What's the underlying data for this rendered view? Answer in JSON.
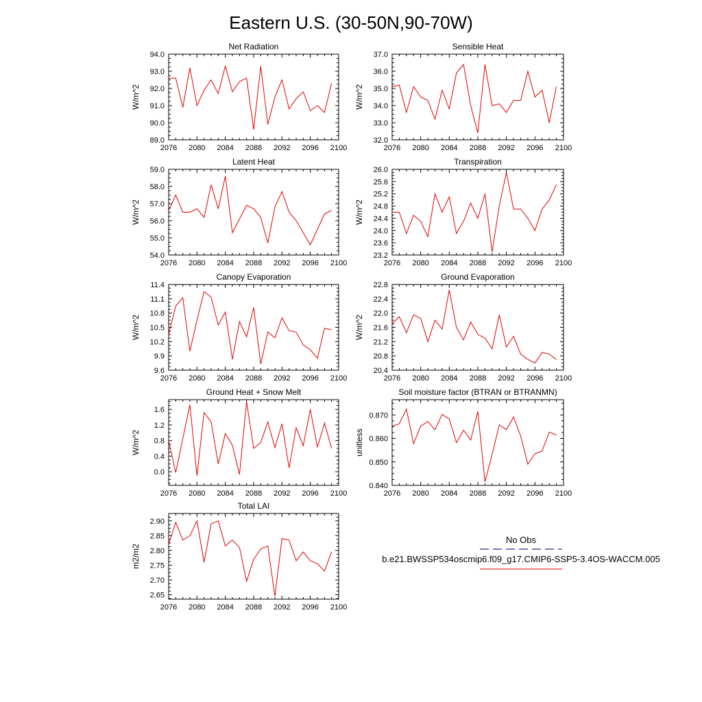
{
  "title": "Eastern U.S. (30-50N,90-70W)",
  "legend": {
    "obs_label": "No Obs",
    "obs_color": "#2a2a8a",
    "model_label": "b.e21.BWSSP534oscmip6.f09_g17.CMIP6-SSP5-3.4OS-WACCM.005",
    "model_color": "#e00000"
  },
  "chart_data": [
    {
      "type": "line",
      "title": "Net Radiation",
      "ylabel": "W/m^2",
      "xlim": [
        2076,
        2100
      ],
      "ylim": [
        89.0,
        94.0
      ],
      "xticks": [
        "2076",
        "2080",
        "2084",
        "2088",
        "2092",
        "2096",
        "2100"
      ],
      "yticks": [
        "89.0",
        "90.0",
        "91.0",
        "92.0",
        "93.0",
        "94.0"
      ],
      "series": [
        {
          "x_start": 2076,
          "values": [
            92.6,
            92.6,
            90.9,
            93.2,
            91.0,
            91.9,
            92.5,
            91.7,
            93.3,
            91.8,
            92.4,
            92.6,
            89.6,
            93.3,
            89.9,
            91.5,
            92.5,
            90.8,
            91.4,
            91.8,
            90.7,
            91.0,
            90.6,
            92.3
          ]
        }
      ]
    },
    {
      "type": "line",
      "title": "Sensible Heat",
      "ylabel": "W/m^2",
      "xlim": [
        2076,
        2100
      ],
      "ylim": [
        32.0,
        37.0
      ],
      "xticks": [
        "2076",
        "2080",
        "2084",
        "2088",
        "2092",
        "2096",
        "2100"
      ],
      "yticks": [
        "32.0",
        "33.0",
        "34.0",
        "35.0",
        "36.0",
        "37.0"
      ],
      "series": [
        {
          "x_start": 2076,
          "values": [
            35.1,
            35.2,
            33.6,
            35.1,
            34.5,
            34.3,
            33.2,
            34.9,
            33.8,
            35.9,
            36.4,
            34.0,
            32.4,
            36.4,
            34.0,
            34.1,
            33.6,
            34.3,
            34.3,
            36.0,
            34.5,
            34.9,
            33.0,
            35.1
          ]
        }
      ]
    },
    {
      "type": "line",
      "title": "Latent Heat",
      "ylabel": "W/m^2",
      "xlim": [
        2076,
        2100
      ],
      "ylim": [
        54.0,
        59.0
      ],
      "xticks": [
        "2076",
        "2080",
        "2084",
        "2088",
        "2092",
        "2096",
        "2100"
      ],
      "yticks": [
        "54.0",
        "55.0",
        "56.0",
        "57.0",
        "58.0",
        "59.0"
      ],
      "series": [
        {
          "x_start": 2076,
          "values": [
            56.6,
            57.5,
            56.5,
            56.5,
            56.7,
            56.2,
            58.1,
            56.7,
            58.6,
            55.3,
            56.1,
            56.9,
            56.7,
            56.2,
            54.7,
            56.8,
            57.7,
            56.5,
            56.0,
            55.3,
            54.6,
            55.5,
            56.4,
            56.6
          ]
        }
      ]
    },
    {
      "type": "line",
      "title": "Transpiration",
      "ylabel": "W/m^2",
      "xlim": [
        2076,
        2100
      ],
      "ylim": [
        23.2,
        26.0
      ],
      "xticks": [
        "2076",
        "2080",
        "2084",
        "2088",
        "2092",
        "2096",
        "2100"
      ],
      "yticks": [
        "23.2",
        "23.6",
        "24.0",
        "24.4",
        "24.8",
        "25.2",
        "25.6",
        "26.0"
      ],
      "series": [
        {
          "x_start": 2076,
          "values": [
            24.6,
            24.6,
            23.9,
            24.5,
            24.3,
            23.8,
            25.2,
            24.6,
            25.1,
            23.9,
            24.3,
            24.9,
            24.4,
            25.2,
            23.3,
            24.8,
            25.9,
            24.7,
            24.7,
            24.4,
            24.0,
            24.7,
            25.0,
            25.5
          ]
        }
      ]
    },
    {
      "type": "line",
      "title": "Canopy Evaporation",
      "ylabel": "W/m^2",
      "xlim": [
        2076,
        2100
      ],
      "ylim": [
        9.6,
        11.4
      ],
      "xticks": [
        "2076",
        "2080",
        "2084",
        "2088",
        "2092",
        "2096",
        "2100"
      ],
      "yticks": [
        "9.6",
        "9.9",
        "10.2",
        "10.5",
        "10.8",
        "11.1",
        "11.4"
      ],
      "series": [
        {
          "x_start": 2076,
          "values": [
            10.35,
            10.95,
            11.12,
            10.0,
            10.65,
            11.25,
            11.13,
            10.55,
            10.82,
            9.83,
            10.62,
            10.3,
            10.92,
            9.73,
            10.4,
            10.28,
            10.7,
            10.43,
            10.4,
            10.13,
            10.03,
            9.85,
            10.48,
            10.45
          ]
        }
      ]
    },
    {
      "type": "line",
      "title": "Ground Evaporation",
      "ylabel": "W/m^2",
      "xlim": [
        2076,
        2100
      ],
      "ylim": [
        20.4,
        22.8
      ],
      "xticks": [
        "2076",
        "2080",
        "2084",
        "2088",
        "2092",
        "2096",
        "2100"
      ],
      "yticks": [
        "20.4",
        "20.8",
        "21.2",
        "21.6",
        "22.0",
        "22.4",
        "22.8"
      ],
      "series": [
        {
          "x_start": 2076,
          "values": [
            21.7,
            21.9,
            21.45,
            21.95,
            21.85,
            21.2,
            21.8,
            21.55,
            22.65,
            21.6,
            21.25,
            21.75,
            21.4,
            21.3,
            21.0,
            21.95,
            21.05,
            21.35,
            20.85,
            20.7,
            20.6,
            20.9,
            20.85,
            20.7
          ]
        }
      ]
    },
    {
      "type": "line",
      "title": "Ground Heat + Snow Melt",
      "ylabel": "W/m^2",
      "xlim": [
        2076,
        2100
      ],
      "ylim": [
        -0.35,
        1.85
      ],
      "xticks": [
        "2076",
        "2080",
        "2084",
        "2088",
        "2092",
        "2096",
        "2100"
      ],
      "yticks": [
        "0.0",
        "0.4",
        "0.8",
        "1.2",
        "1.6"
      ],
      "series": [
        {
          "x_start": 2076,
          "values": [
            0.8,
            -0.02,
            0.85,
            1.72,
            -0.1,
            1.52,
            1.28,
            0.2,
            0.98,
            0.68,
            -0.07,
            1.8,
            0.6,
            0.75,
            1.28,
            0.62,
            1.23,
            0.1,
            1.13,
            0.67,
            1.6,
            0.63,
            1.25,
            0.6
          ]
        }
      ]
    },
    {
      "type": "line",
      "title": "Soil moisture factor (BTRAN or BTRANMN)",
      "ylabel": "unitless",
      "xlim": [
        2076,
        2100
      ],
      "ylim": [
        0.84,
        0.8765
      ],
      "xticks": [
        "2076",
        "2080",
        "2084",
        "2088",
        "2092",
        "2096",
        "2100"
      ],
      "yticks": [
        "0.840",
        "0.850",
        "0.860",
        "0.870"
      ],
      "series": [
        {
          "x_start": 2076,
          "values": [
            0.8652,
            0.8662,
            0.8725,
            0.8578,
            0.8652,
            0.8672,
            0.8637,
            0.8702,
            0.8683,
            0.8582,
            0.8635,
            0.8593,
            0.8715,
            0.8415,
            0.8532,
            0.8658,
            0.8637,
            0.8691,
            0.861,
            0.849,
            0.8535,
            0.8546,
            0.8627,
            0.8614
          ]
        }
      ]
    },
    {
      "type": "line",
      "title": "Total LAI",
      "ylabel": "m2/m2",
      "xlim": [
        2076,
        2100
      ],
      "ylim": [
        2.635,
        2.925
      ],
      "xticks": [
        "2076",
        "2080",
        "2084",
        "2088",
        "2092",
        "2096",
        "2100"
      ],
      "yticks": [
        "2.65",
        "2.70",
        "2.75",
        "2.80",
        "2.85",
        "2.90"
      ],
      "series": [
        {
          "x_start": 2076,
          "values": [
            2.82,
            2.895,
            2.835,
            2.85,
            2.9,
            2.76,
            2.89,
            2.9,
            2.815,
            2.835,
            2.81,
            2.695,
            2.77,
            2.805,
            2.815,
            2.645,
            2.84,
            2.835,
            2.765,
            2.795,
            2.765,
            2.755,
            2.73,
            2.795
          ]
        }
      ]
    }
  ]
}
